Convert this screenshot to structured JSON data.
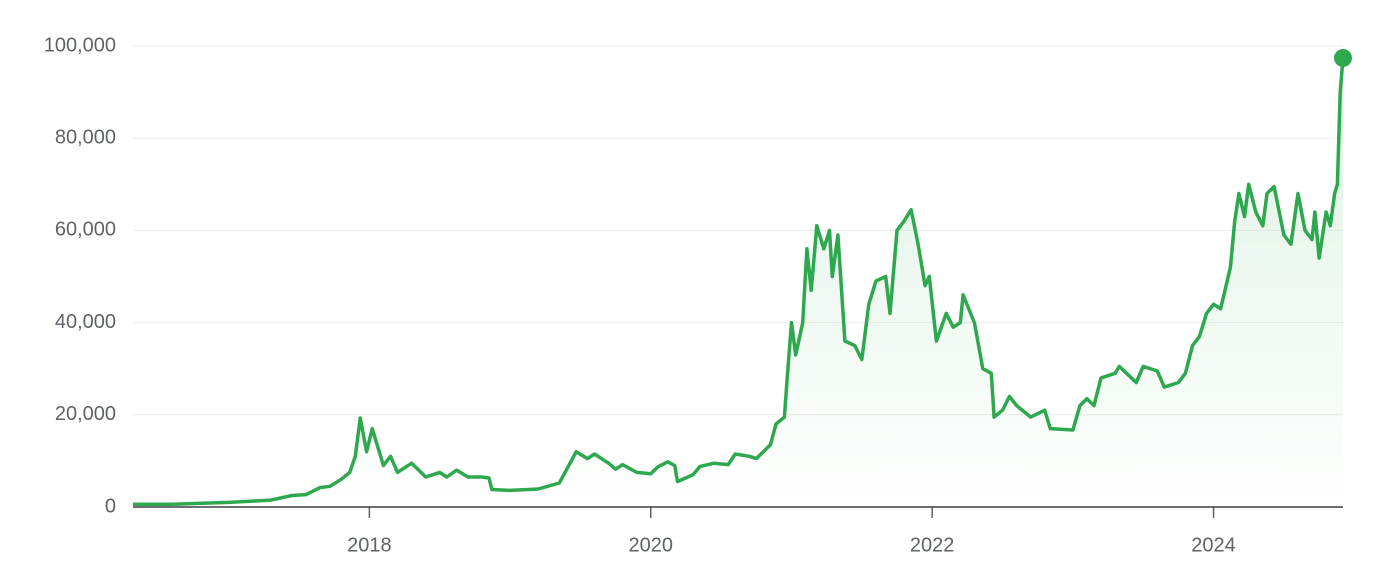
{
  "chart_data": {
    "type": "line",
    "x": [
      2016.32,
      2016.6,
      2017.0,
      2017.3,
      2017.45,
      2017.55,
      2017.65,
      2017.72,
      2017.8,
      2017.86,
      2017.9,
      2017.935,
      2017.98,
      2018.02,
      2018.1,
      2018.15,
      2018.2,
      2018.3,
      2018.4,
      2018.5,
      2018.55,
      2018.62,
      2018.7,
      2018.8,
      2018.85,
      2018.87,
      2019.0,
      2019.2,
      2019.35,
      2019.4,
      2019.47,
      2019.55,
      2019.6,
      2019.7,
      2019.75,
      2019.8,
      2019.9,
      2020.0,
      2020.05,
      2020.12,
      2020.17,
      2020.19,
      2020.3,
      2020.35,
      2020.45,
      2020.55,
      2020.6,
      2020.7,
      2020.75,
      2020.85,
      2020.89,
      2020.95,
      2020.97,
      2021.0,
      2021.03,
      2021.08,
      2021.11,
      2021.14,
      2021.18,
      2021.23,
      2021.27,
      2021.29,
      2021.33,
      2021.38,
      2021.45,
      2021.5,
      2021.55,
      2021.6,
      2021.67,
      2021.7,
      2021.75,
      2021.8,
      2021.85,
      2021.9,
      2021.95,
      2021.98,
      2022.03,
      2022.1,
      2022.15,
      2022.2,
      2022.22,
      2022.3,
      2022.36,
      2022.42,
      2022.44,
      2022.5,
      2022.55,
      2022.6,
      2022.7,
      2022.8,
      2022.84,
      2023.0,
      2023.05,
      2023.1,
      2023.15,
      2023.2,
      2023.3,
      2023.33,
      2023.45,
      2023.5,
      2023.6,
      2023.65,
      2023.75,
      2023.8,
      2023.85,
      2023.9,
      2023.95,
      2024.0,
      2024.05,
      2024.12,
      2024.15,
      2024.18,
      2024.22,
      2024.25,
      2024.3,
      2024.35,
      2024.38,
      2024.43,
      2024.5,
      2024.55,
      2024.6,
      2024.65,
      2024.7,
      2024.72,
      2024.75,
      2024.8,
      2024.83,
      2024.86,
      2024.88,
      2024.9,
      2024.92
    ],
    "series": [
      {
        "color": "#2ea84e",
        "values": [
          600,
          600,
          1000,
          1500,
          2500,
          2700,
          4200,
          4500,
          6000,
          7500,
          11000,
          19300,
          12000,
          17000,
          9000,
          11000,
          7500,
          9500,
          6500,
          7500,
          6500,
          8000,
          6500,
          6500,
          6300,
          3800,
          3600,
          3900,
          5200,
          8000,
          12000,
          10500,
          11500,
          9500,
          8200,
          9200,
          7500,
          7200,
          8700,
          9800,
          9000,
          5500,
          7000,
          8800,
          9500,
          9200,
          11500,
          11000,
          10500,
          13500,
          18000,
          19500,
          28000,
          40000,
          33000,
          40000,
          56000,
          47000,
          61000,
          56000,
          60000,
          50000,
          59000,
          36000,
          35000,
          32000,
          44000,
          49000,
          50000,
          42000,
          60000,
          62000,
          64500,
          57000,
          48000,
          50000,
          36000,
          42000,
          39000,
          40000,
          46000,
          40000,
          30000,
          29000,
          19500,
          21000,
          24000,
          22000,
          19500,
          21000,
          17000,
          16700,
          22000,
          23500,
          22000,
          28000,
          29000,
          30500,
          27000,
          30500,
          29500,
          26000,
          27000,
          29000,
          35000,
          37000,
          42000,
          44000,
          43000,
          52000,
          62000,
          68000,
          63000,
          70000,
          64000,
          61000,
          68000,
          69500,
          59000,
          57000,
          68000,
          60000,
          58000,
          64000,
          54000,
          64000,
          61000,
          68000,
          70000,
          90000,
          97400
        ]
      }
    ],
    "xlim": [
      2016.32,
      2024.92
    ],
    "xticks": [
      2018,
      2020,
      2022,
      2024
    ],
    "ylim": [
      0,
      100000
    ],
    "yticks": [
      0,
      {
        "value": 20000,
        "label": "20,000"
      },
      {
        "value": 40000,
        "label": "40,000"
      },
      {
        "value": 60000,
        "label": "60,000"
      },
      {
        "value": 80000,
        "label": "80,000"
      },
      {
        "value": 100000,
        "label": "100,000"
      }
    ],
    "grid": true
  }
}
